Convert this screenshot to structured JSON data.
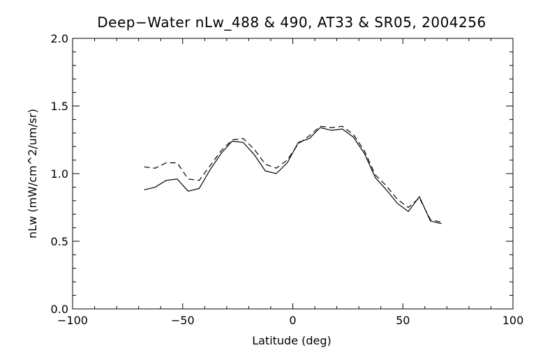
{
  "chart_data": {
    "type": "line",
    "title": "Deep−Water nLw_488 & 490, AT33 & SR05, 2004256",
    "xlabel": "Latitude (deg)",
    "ylabel": "nLw (mW/cm^2/um/sr)",
    "xlim": [
      -100,
      100
    ],
    "ylim": [
      0.0,
      2.0
    ],
    "x_ticks": [
      -100,
      -50,
      0,
      50,
      100
    ],
    "x_tick_labels": [
      "−100",
      "−50",
      "0",
      "50",
      "100"
    ],
    "y_ticks": [
      0.0,
      0.5,
      1.0,
      1.5,
      2.0
    ],
    "y_tick_labels": [
      "0.0",
      "0.5",
      "1.0",
      "1.5",
      "2.0"
    ],
    "grid": false,
    "series": [
      {
        "style": "solid",
        "color": "#000000",
        "points": [
          [
            -67.5,
            0.88
          ],
          [
            -62.5,
            0.9
          ],
          [
            -57.5,
            0.95
          ],
          [
            -52.5,
            0.96
          ],
          [
            -47.5,
            0.87
          ],
          [
            -42.5,
            0.89
          ],
          [
            -37.5,
            1.03
          ],
          [
            -32.5,
            1.15
          ],
          [
            -27.5,
            1.24
          ],
          [
            -22.5,
            1.23
          ],
          [
            -17.5,
            1.14
          ],
          [
            -12.5,
            1.02
          ],
          [
            -7.5,
            1.0
          ],
          [
            -2.5,
            1.08
          ],
          [
            2.5,
            1.23
          ],
          [
            7.5,
            1.26
          ],
          [
            12.5,
            1.34
          ],
          [
            17.5,
            1.32
          ],
          [
            22.5,
            1.33
          ],
          [
            27.5,
            1.27
          ],
          [
            32.5,
            1.15
          ],
          [
            37.5,
            0.97
          ],
          [
            42.5,
            0.88
          ],
          [
            47.5,
            0.78
          ],
          [
            52.5,
            0.72
          ],
          [
            57.5,
            0.83
          ],
          [
            62.5,
            0.65
          ],
          [
            67.5,
            0.63
          ]
        ]
      },
      {
        "style": "dashed",
        "color": "#000000",
        "points": [
          [
            -67.5,
            1.05
          ],
          [
            -62.5,
            1.04
          ],
          [
            -57.5,
            1.08
          ],
          [
            -52.5,
            1.08
          ],
          [
            -47.5,
            0.96
          ],
          [
            -42.5,
            0.95
          ],
          [
            -37.5,
            1.06
          ],
          [
            -32.5,
            1.17
          ],
          [
            -27.5,
            1.25
          ],
          [
            -22.5,
            1.26
          ],
          [
            -17.5,
            1.18
          ],
          [
            -12.5,
            1.07
          ],
          [
            -7.5,
            1.04
          ],
          [
            -2.5,
            1.1
          ],
          [
            2.5,
            1.22
          ],
          [
            7.5,
            1.28
          ],
          [
            12.5,
            1.35
          ],
          [
            17.5,
            1.34
          ],
          [
            22.5,
            1.35
          ],
          [
            27.5,
            1.29
          ],
          [
            32.5,
            1.17
          ],
          [
            37.5,
            0.99
          ],
          [
            42.5,
            0.91
          ],
          [
            47.5,
            0.81
          ],
          [
            52.5,
            0.75
          ],
          [
            57.5,
            0.82
          ],
          [
            62.5,
            0.66
          ],
          [
            67.5,
            0.64
          ]
        ]
      }
    ]
  }
}
